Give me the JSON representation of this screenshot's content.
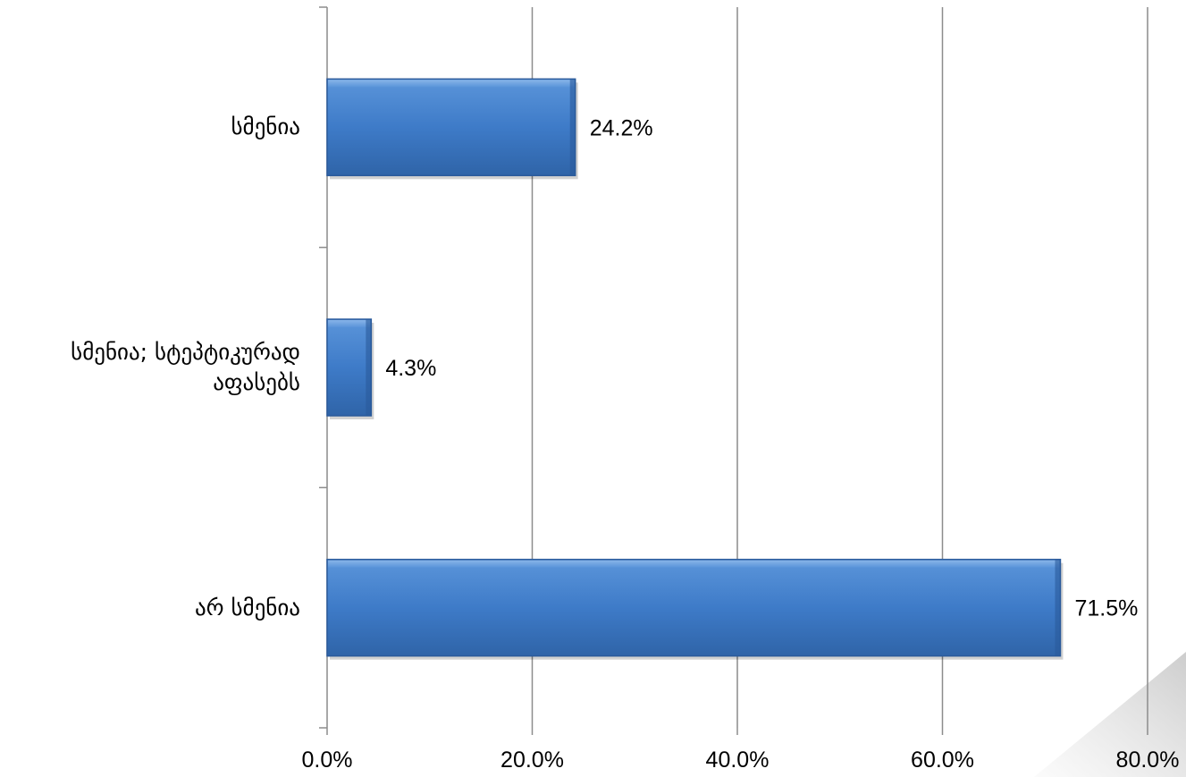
{
  "chart_data": {
    "type": "bar",
    "orientation": "horizontal",
    "categories": [
      "სმენია",
      "სმენია; სტეპტიკურად აფასებს",
      "არ სმენია"
    ],
    "values": [
      24.2,
      4.3,
      71.5
    ],
    "value_labels": [
      "24.2%",
      "4.3%",
      "71.5%"
    ],
    "xlim": [
      0,
      80
    ],
    "x_ticks": [
      0,
      20,
      40,
      60,
      80
    ],
    "x_tick_labels": [
      "0.0%",
      "20.0%",
      "40.0%",
      "60.0%",
      "80.0%"
    ],
    "grid": "vertical",
    "bar_color": "#3C78C3",
    "bar_edge_color": "#2A5A9B",
    "grid_color": "#8C8C8C"
  }
}
